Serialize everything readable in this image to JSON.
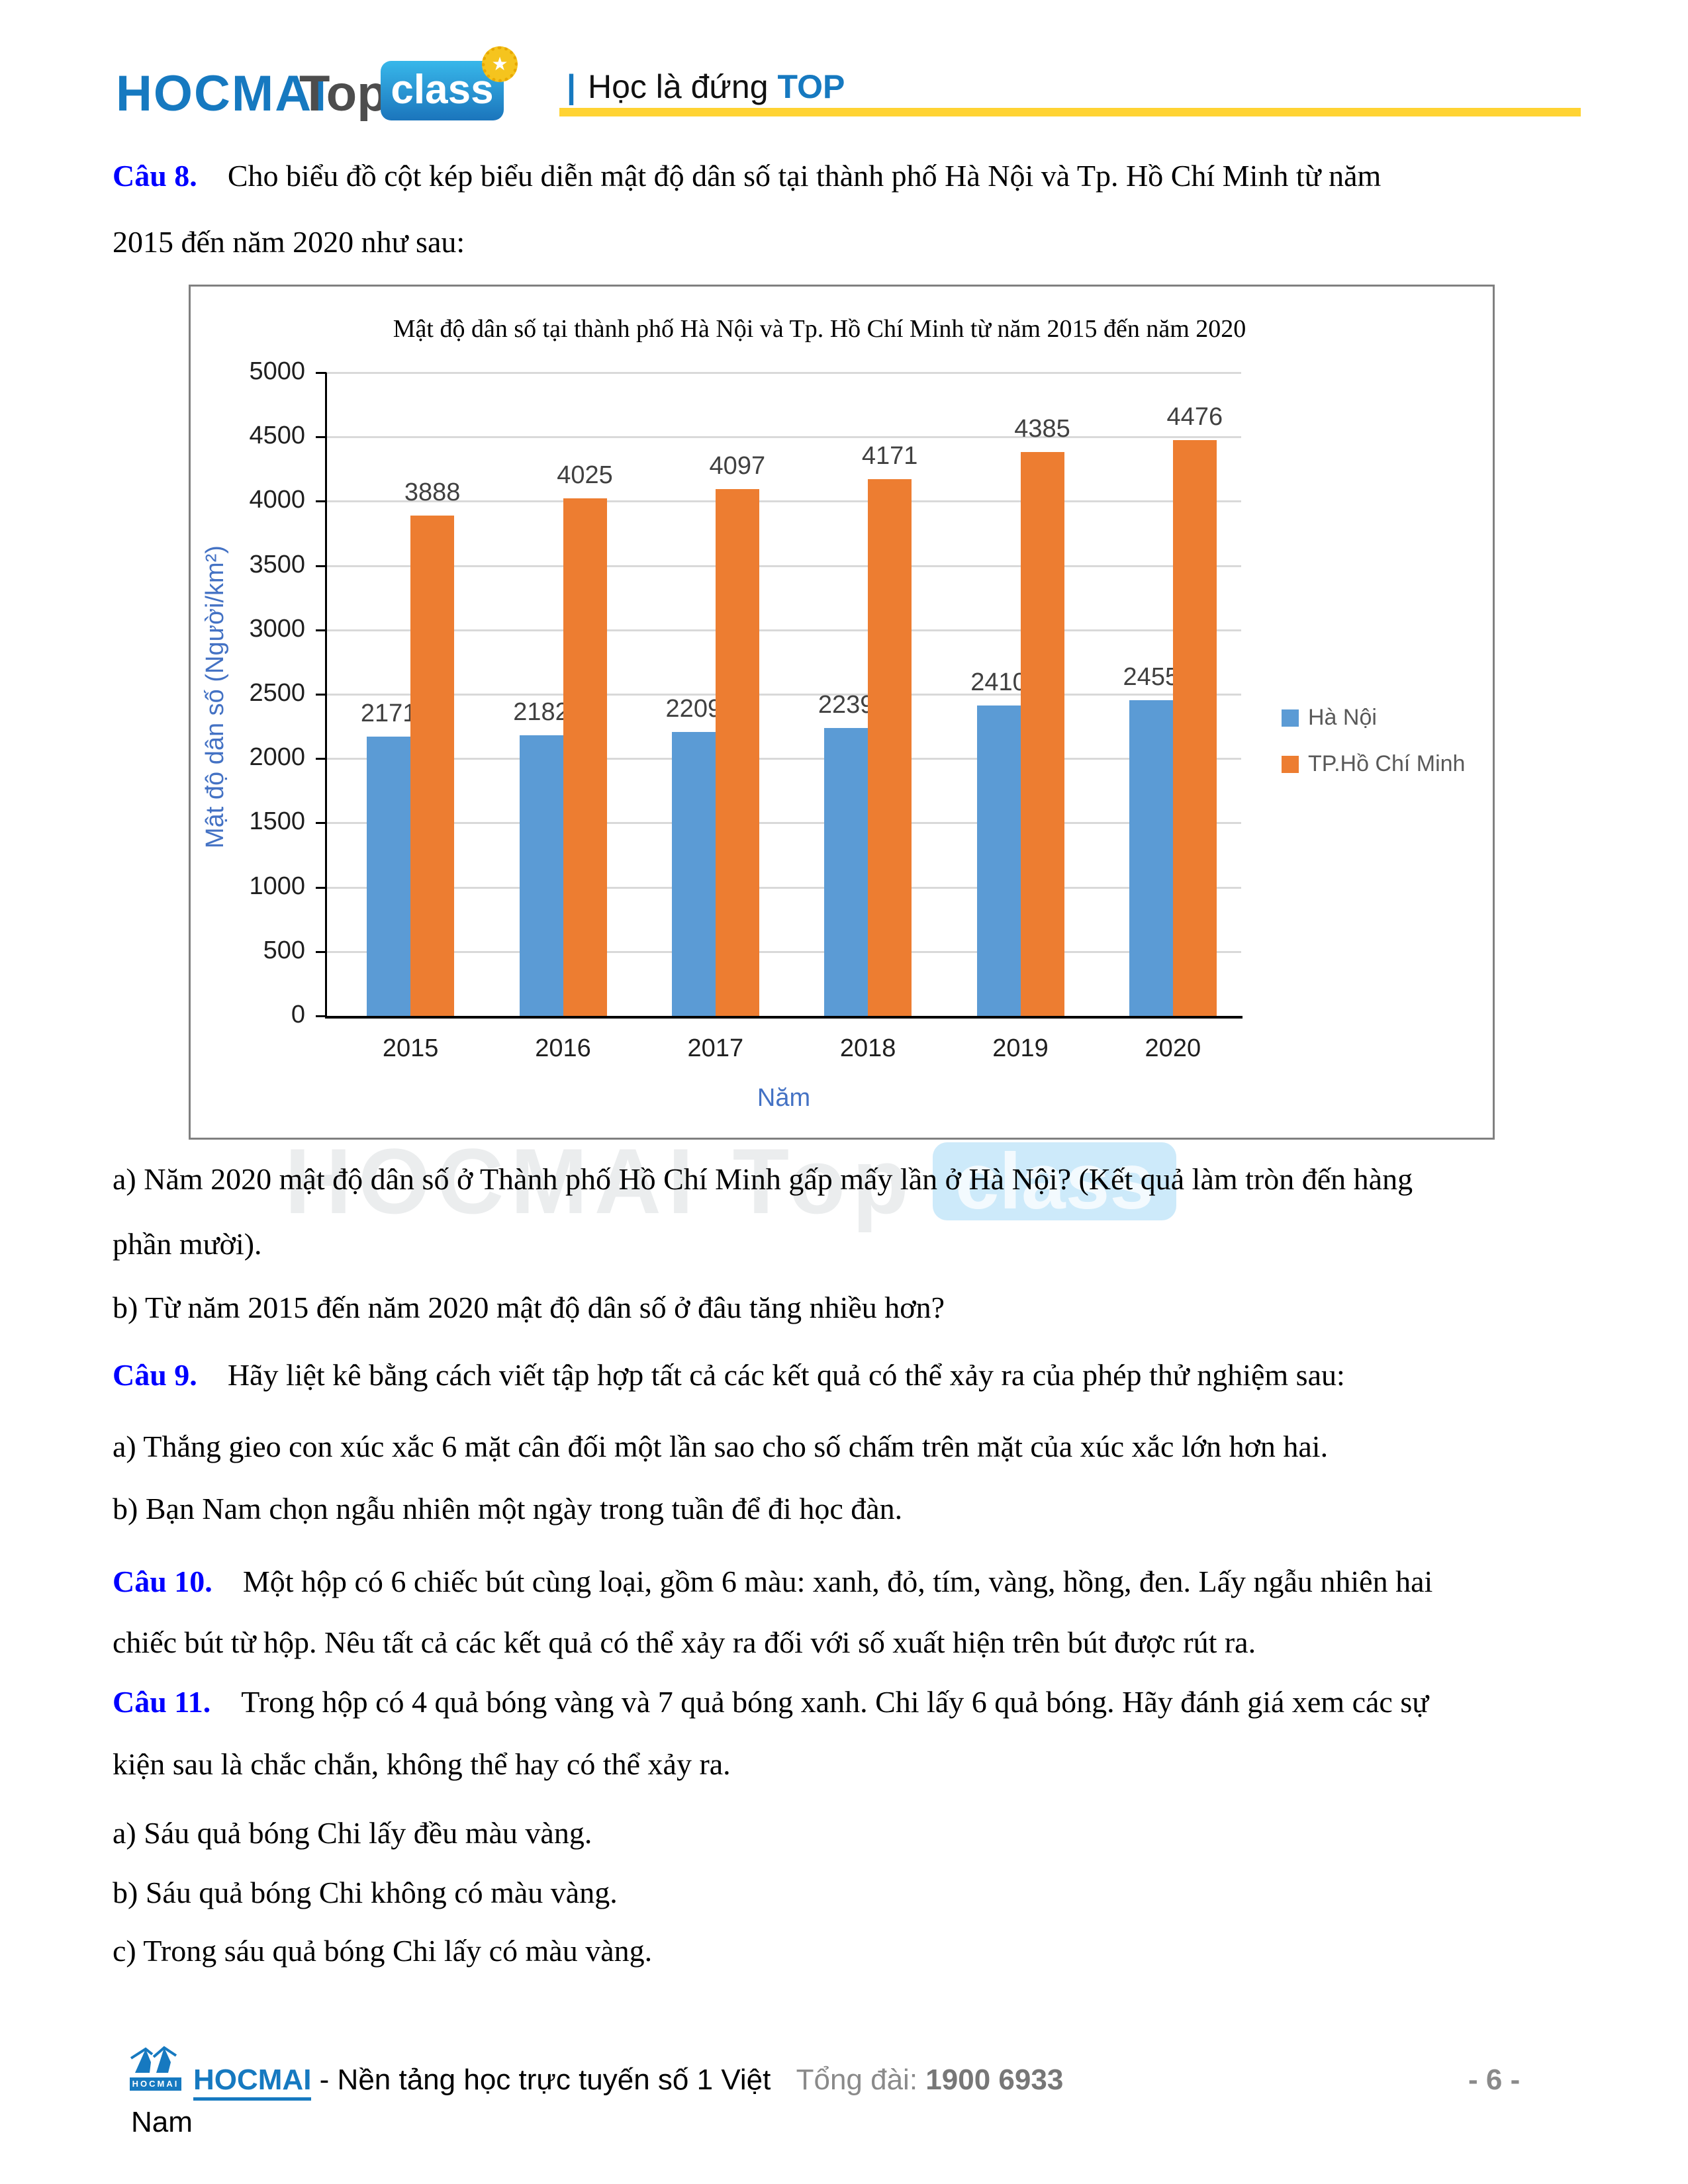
{
  "header": {
    "logo_hocmai": "HOCMAI",
    "logo_top": "Top",
    "logo_class": "class",
    "tagline_pipe": "|",
    "tagline_text": "Học là đứng",
    "tagline_bold": "TOP",
    "accent_yellow": "#FFD333",
    "brand_blue": "#1679C0"
  },
  "questions": {
    "q8_label": "Câu 8.",
    "q8_line1": "Cho biểu đồ cột kép biểu diễn mật độ dân số tại thành phố Hà Nội và Tp. Hồ Chí Minh từ năm",
    "q8_line2": "2015 đến năm 2020 như sau:",
    "q8a_line1": "a) Năm 2020 mật độ dân số ở Thành phố Hồ Chí Minh gấp mấy lần ở Hà Nội? (Kết quả làm tròn đến hàng",
    "q8a_line2": "phần mười).",
    "q8b": "b) Từ năm 2015 đến năm 2020 mật độ dân số ở đâu tăng nhiều hơn?",
    "q9_label": "Câu 9.",
    "q9_intro": "Hãy liệt kê bằng cách viết tập hợp tất cả các kết quả có thể xảy ra của phép thử nghiệm sau:",
    "q9a": "a) Thắng gieo con xúc xắc 6 mặt cân đối một lần sao cho số chấm trên mặt của xúc xắc lớn hơn hai.",
    "q9b": "b) Bạn Nam chọn ngẫu nhiên một ngày trong tuần để đi học đàn.",
    "q10_label": "Câu 10.",
    "q10_line1": "Một hộp có 6 chiếc bút cùng loại, gồm 6 màu: xanh, đỏ, tím, vàng, hồng, đen. Lấy ngẫu nhiên hai",
    "q10_line2": "chiếc bút từ hộp. Nêu tất cả các kết quả có thể xảy ra đối với số xuất hiện trên bút được rút ra.",
    "q11_label": "Câu 11.",
    "q11_line1": "Trong hộp có 4 quả bóng vàng và 7 quả bóng xanh. Chi lấy 6 quả bóng. Hãy đánh giá xem các sự",
    "q11_line2": "kiện sau là chắc chắn, không thể hay có thể xảy ra.",
    "q11a": "a) Sáu quả bóng Chi lấy đều màu vàng.",
    "q11b": "b) Sáu quả bóng Chi không có màu vàng.",
    "q11c": "c) Trong sáu quả bóng Chi lấy có màu vàng."
  },
  "chart_data": {
    "type": "bar",
    "title": "Mật độ dân số tại thành phố Hà Nội và Tp. Hồ Chí Minh từ năm 2015 đến năm 2020",
    "categories": [
      "2015",
      "2016",
      "2017",
      "2018",
      "2019",
      "2020"
    ],
    "series": [
      {
        "name": "Hà Nội",
        "color": "#5B9BD5",
        "values": [
          2171,
          2182,
          2209,
          2239,
          2410,
          2455
        ]
      },
      {
        "name": "TP.Hồ Chí Minh",
        "color": "#ED7D31",
        "values": [
          3888,
          4025,
          4097,
          4171,
          4385,
          4476
        ]
      }
    ],
    "xlabel": "Năm",
    "ylabel": "Mật độ dân số (Người/km²)",
    "ylim": [
      0,
      5000
    ],
    "ytick_step": 500,
    "yticks": [
      "0",
      "500",
      "1000",
      "1500",
      "2000",
      "2500",
      "3000",
      "3500",
      "4000",
      "4500",
      "5000"
    ],
    "grid": true,
    "legend_position": "right",
    "axis_title_color": "#4472C4",
    "gridline_color": "#D9D9D9",
    "value_label_color": "#404040"
  },
  "watermark": {
    "text": "HOCMAI Top",
    "box_text": "class"
  },
  "footer": {
    "logo_caption": "HOCMAI",
    "brand": "HOCMAI",
    "brand_tagline": "- Nền tảng học trực tuyến số 1 Việt",
    "brand_tagline_wrap": "Nam",
    "hotline_label": "Tổng đài:",
    "hotline_number": "1900 6933",
    "page_number": "- 6 -"
  }
}
